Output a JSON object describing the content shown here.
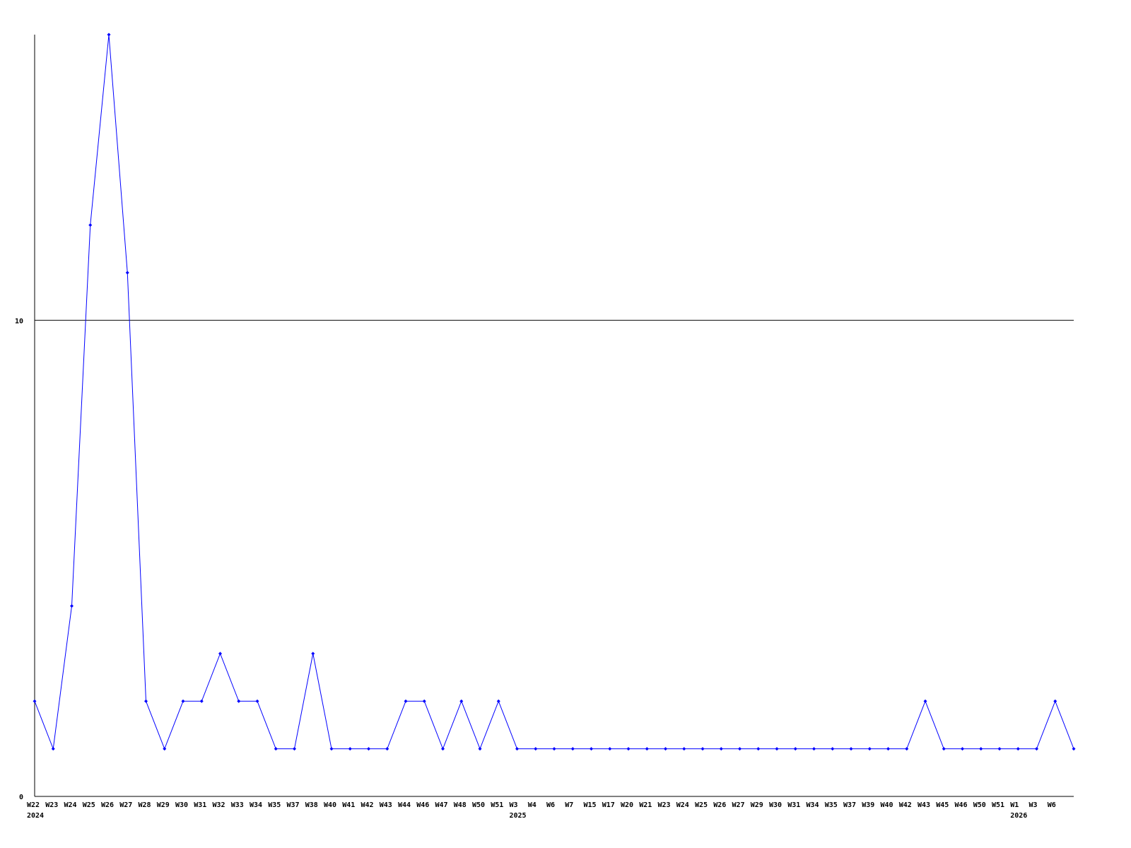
{
  "chart_data": {
    "type": "line",
    "title": "",
    "xlabel": "",
    "ylabel": "",
    "ylim": [
      0,
      16
    ],
    "yticks": [
      0,
      10
    ],
    "grid": "horizontal line at 10",
    "legend": "none",
    "line_color": "#0000ff",
    "x": [
      "W22",
      "W23",
      "W24",
      "W25",
      "W26",
      "W27",
      "W28",
      "W29",
      "W30",
      "W31",
      "W32",
      "W33",
      "W34",
      "W35",
      "W37",
      "W38",
      "W40",
      "W41",
      "W42",
      "W43",
      "W44",
      "W46",
      "W47",
      "W48",
      "W50",
      "W51",
      "W3",
      "W4",
      "W6",
      "W7",
      "W15",
      "W17",
      "W20",
      "W21",
      "W23",
      "W24",
      "W25",
      "W26",
      "W27",
      "W29",
      "W30",
      "W31",
      "W34",
      "W35",
      "W37",
      "W39",
      "W40",
      "W42",
      "W43",
      "W45",
      "W46",
      "W50",
      "W51",
      "W1",
      "W3",
      "W6",
      ""
    ],
    "year_labels": [
      {
        "index": 0,
        "label": "2024"
      },
      {
        "index": 26,
        "label": "2025"
      },
      {
        "index": 53,
        "label": "2026"
      }
    ],
    "values": [
      2,
      1,
      4,
      12,
      16,
      11,
      2,
      1,
      2,
      2,
      3,
      2,
      2,
      1,
      1,
      3,
      1,
      1,
      1,
      1,
      2,
      2,
      1,
      2,
      1,
      2,
      1,
      1,
      1,
      1,
      1,
      1,
      1,
      1,
      1,
      1,
      1,
      1,
      1,
      1,
      1,
      1,
      1,
      1,
      1,
      1,
      1,
      1,
      2,
      1,
      1,
      1,
      1,
      1,
      1,
      2,
      1
    ]
  }
}
